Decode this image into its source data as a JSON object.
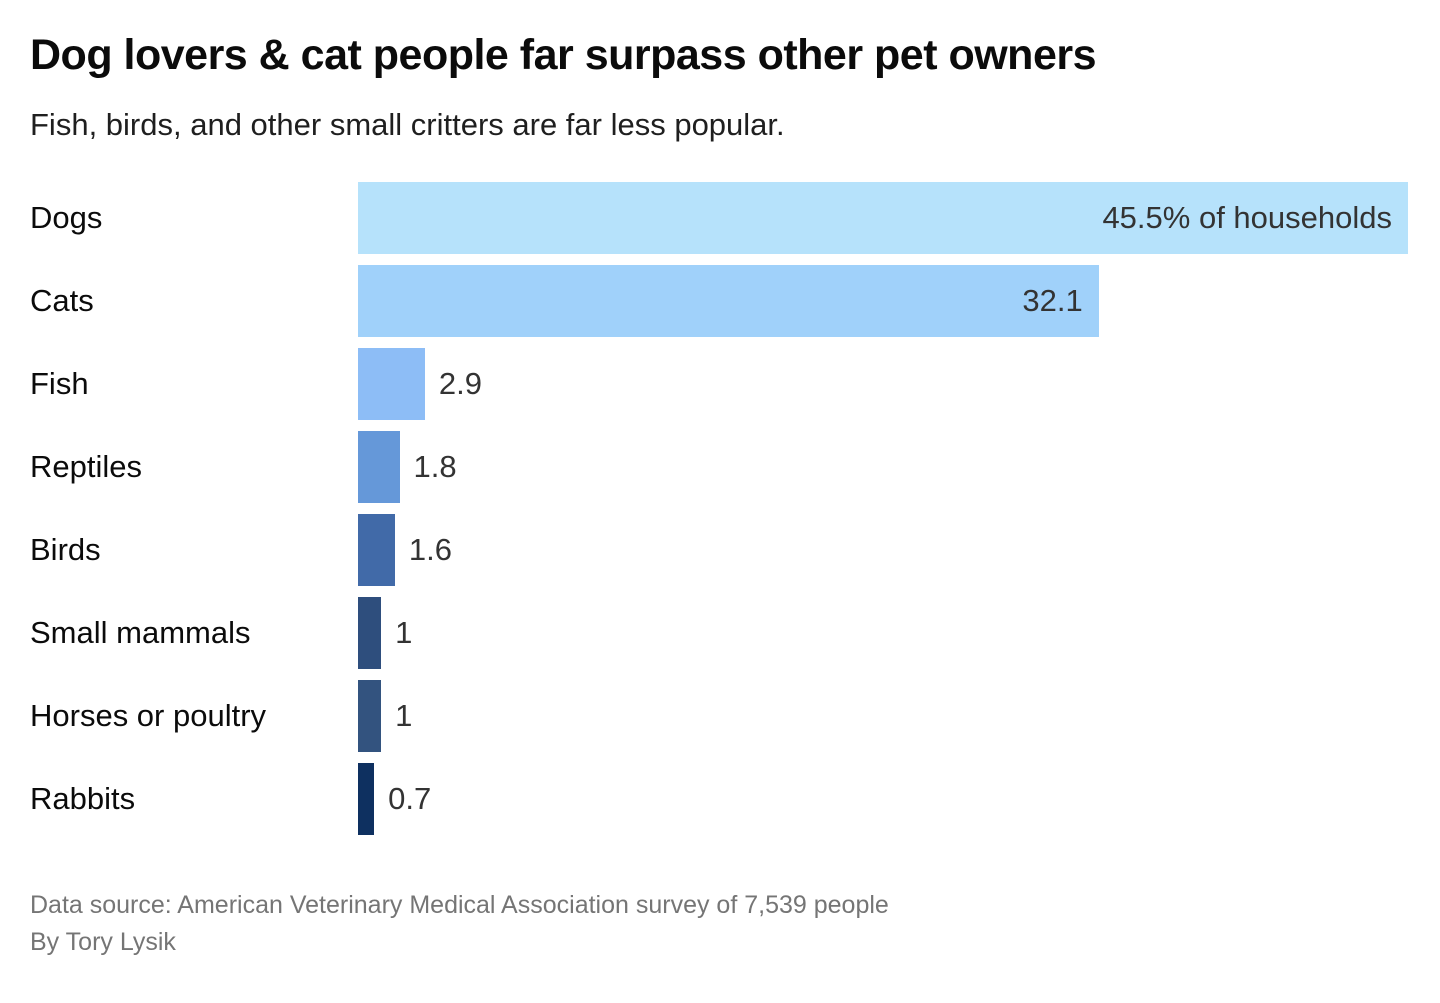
{
  "header": {
    "title": "Dog lovers & cat people far surpass other pet owners",
    "subtitle": "Fish, birds, and other small critters are far less popular."
  },
  "footer": {
    "source": "Data source: American Veterinary Medical Association survey of 7,539 people",
    "byline": "By Tory Lysik"
  },
  "colors": {
    "background": "#ffffff",
    "title_text": "#0b0b0b",
    "label_text": "#0b0b0b",
    "value_text": "#333333",
    "muted_text": "#757575"
  },
  "chart_data": {
    "type": "bar",
    "orientation": "horizontal",
    "title": "Dog lovers & cat people far surpass other pet owners",
    "subtitle": "Fish, birds, and other small critters are far less popular.",
    "categories": [
      "Dogs",
      "Cats",
      "Fish",
      "Reptiles",
      "Birds",
      "Small mammals",
      "Horses or poultry",
      "Rabbits"
    ],
    "values": [
      45.5,
      32.1,
      2.9,
      1.8,
      1.6,
      1,
      1,
      0.7
    ],
    "value_labels": [
      "45.5% of households",
      "32.1",
      "2.9",
      "1.8",
      "1.6",
      "1",
      "1",
      "0.7"
    ],
    "unit": "% of households",
    "bar_colors": [
      "#b6e2fb",
      "#a0d1fa",
      "#8dbdf6",
      "#6598d9",
      "#416aa8",
      "#2e4e7d",
      "#33537f",
      "#0e3060"
    ],
    "xlim": [
      0,
      45.5
    ],
    "grid": false,
    "legend": "none",
    "label_inside_threshold": 10,
    "source": "Data source: American Veterinary Medical Association survey of 7,539 people",
    "byline": "By Tory Lysik"
  }
}
